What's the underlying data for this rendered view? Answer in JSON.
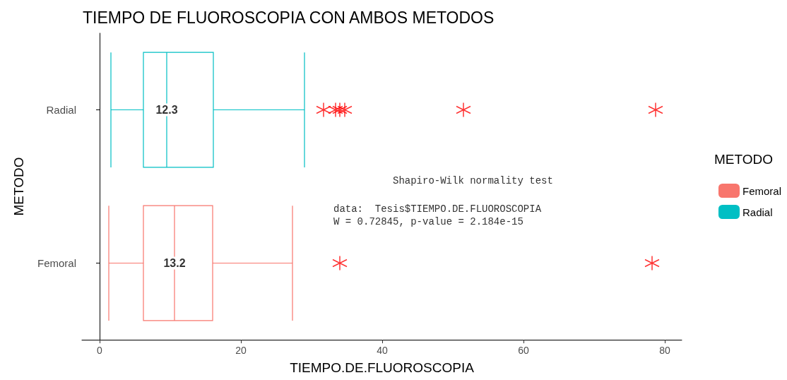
{
  "chart_data": {
    "type": "box",
    "orientation": "horizontal",
    "title": "TIEMPO DE FLUOROSCOPIA CON AMBOS METODOS",
    "xlabel": "TIEMPO.DE.FLUOROSCOPIA",
    "ylabel": "METODO",
    "legend_title": "METODO",
    "legend": "right",
    "grid": false,
    "marker": "cross",
    "categories": [
      "Radial",
      "Femoral"
    ],
    "xlim": [
      -2.5,
      82.4
    ],
    "xticks": [
      0,
      20,
      40,
      60,
      80
    ],
    "series": [
      {
        "name": "Femoral",
        "color": "#f8766d",
        "boxes": [
          null,
          {
            "low": 1.3,
            "q1": 6.2,
            "median": 10.6,
            "q3": 16.0,
            "high": 27.3
          }
        ]
      },
      {
        "name": "Radial",
        "color": "#00bfc4",
        "boxes": [
          {
            "low": 1.6,
            "q1": 6.2,
            "median": 9.5,
            "q3": 16.1,
            "high": 29.0
          },
          null
        ]
      },
      {
        "type": "scatter",
        "color": "#ff0000",
        "x": [
          "Radial",
          "Radial",
          "Radial",
          "Radial",
          "Radial",
          "Radial",
          "Femoral",
          "Femoral"
        ],
        "values": [
          31.7,
          33.4,
          34.0,
          34.7,
          51.5,
          78.7,
          34.0,
          78.2
        ]
      }
    ],
    "annotations": [
      {
        "text": "12.3",
        "x": 9.5,
        "y": "Radial"
      },
      {
        "text": "13.2",
        "x": 10.6,
        "y": "Femoral"
      },
      "Shapiro-Wilk normality test",
      "data:  Tesis$TIEMPO.DE.FLUOROSCOPIA",
      "W = 0.72845, p-value = 2.184e-15"
    ]
  }
}
